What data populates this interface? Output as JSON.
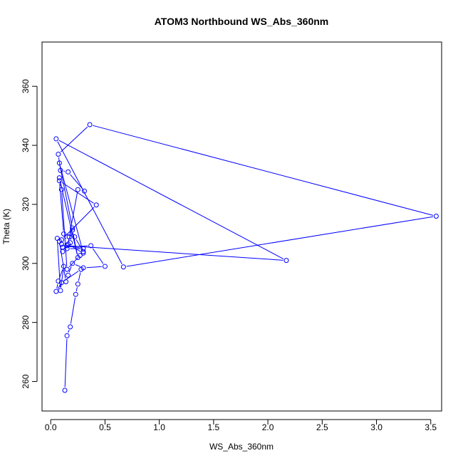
{
  "chart_data": {
    "type": "line",
    "title": "ATOM3 Northbound WS_Abs_360nm",
    "xlabel": "WS_Abs_360nm",
    "ylabel": "Theta (K)",
    "xlim": [
      -0.08,
      3.6
    ],
    "ylim": [
      250,
      375
    ],
    "xticks": [
      0.0,
      0.5,
      1.0,
      1.5,
      2.0,
      2.5,
      3.0,
      3.5
    ],
    "xtick_labels": [
      "0.0",
      "0.5",
      "1.0",
      "1.5",
      "2.0",
      "2.5",
      "3.0",
      "3.5"
    ],
    "yticks": [
      260,
      280,
      300,
      320,
      340,
      360
    ],
    "ytick_labels": [
      "260",
      "280",
      "300",
      "320",
      "340",
      "360"
    ],
    "grid": false,
    "color": "#0000ff",
    "series": [
      {
        "marker": "open-circle",
        "x": [
          0.13,
          0.15,
          0.18,
          0.23,
          0.25,
          0.28,
          0.1,
          0.05,
          0.07,
          0.12,
          0.09,
          0.06,
          0.08,
          0.14,
          0.16,
          0.2,
          0.3,
          0.5,
          0.37,
          0.11,
          0.15,
          0.3,
          0.1,
          0.18,
          0.2,
          0.25,
          0.08,
          0.1,
          0.15,
          0.27,
          0.3,
          0.22,
          0.12,
          0.08,
          0.42,
          0.1,
          0.17,
          0.25,
          0.31,
          0.16,
          0.09,
          0.07,
          0.36,
          3.55,
          0.67,
          0.05,
          2.17,
          0.15,
          0.2,
          0.08,
          0.3,
          0.16,
          0.11
        ],
        "y": [
          257,
          275.5,
          278.5,
          289.5,
          293,
          298,
          293.5,
          290.5,
          294,
          299,
          290.8,
          308.5,
          307.5,
          293.8,
          296,
          300,
          298.5,
          299,
          306,
          305.5,
          305,
          305,
          306.5,
          307,
          311.3,
          302,
          329,
          325,
          298,
          302.7,
          304,
          309,
          310,
          328,
          319.8,
          308,
          309,
          325,
          324.5,
          331,
          331.5,
          337,
          347,
          316,
          298.8,
          342.2,
          301,
          306,
          312,
          334,
          303.5,
          306.5,
          304
        ]
      }
    ]
  }
}
